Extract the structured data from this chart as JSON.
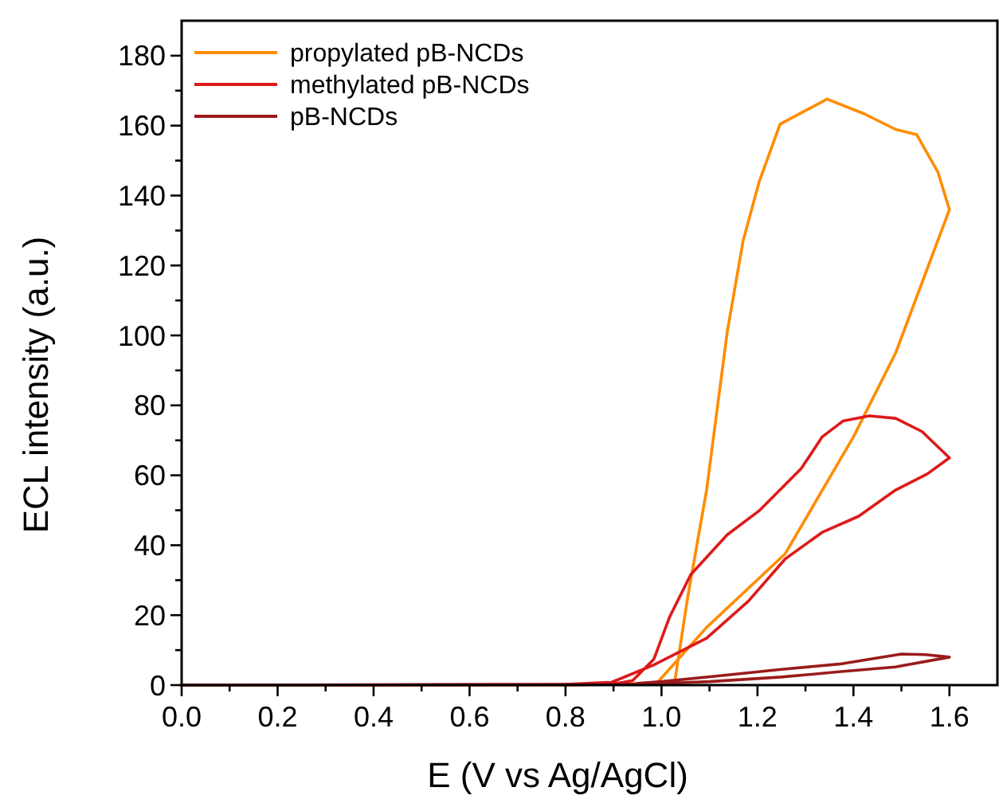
{
  "chart_data": {
    "type": "line",
    "xlabel": "E (V vs Ag/AgCl)",
    "ylabel": "ECL intensity (a.u.)",
    "xlim": [
      0,
      1.7
    ],
    "ylim": [
      0,
      190
    ],
    "xticks": [
      {
        "value": 0,
        "label": "0.0"
      },
      {
        "value": 0.1,
        "label": null
      },
      {
        "value": 0.2,
        "label": "0.2"
      },
      {
        "value": 0.3,
        "label": null
      },
      {
        "value": 0.4,
        "label": "0.4"
      },
      {
        "value": 0.5,
        "label": null
      },
      {
        "value": 0.6,
        "label": "0.6"
      },
      {
        "value": 0.7,
        "label": null
      },
      {
        "value": 0.8,
        "label": "0.8"
      },
      {
        "value": 0.9,
        "label": null
      },
      {
        "value": 1.0,
        "label": "1.0"
      },
      {
        "value": 1.1,
        "label": null
      },
      {
        "value": 1.2,
        "label": "1.2"
      },
      {
        "value": 1.3,
        "label": null
      },
      {
        "value": 1.4,
        "label": "1.4"
      },
      {
        "value": 1.5,
        "label": null
      },
      {
        "value": 1.6,
        "label": "1.6"
      }
    ],
    "yticks": [
      0,
      {
        "value": 10,
        "label": null
      },
      20,
      {
        "value": 30,
        "label": null
      },
      40,
      {
        "value": 50,
        "label": null
      },
      60,
      {
        "value": 70,
        "label": null
      },
      80,
      {
        "value": 90,
        "label": null
      },
      100,
      {
        "value": 110,
        "label": null
      },
      120,
      {
        "value": 130,
        "label": null
      },
      140,
      {
        "value": 150,
        "label": null
      },
      160,
      {
        "value": 170,
        "label": null
      },
      180
    ],
    "legend": "top left",
    "grid": false,
    "marker": "none",
    "line_style": "solid",
    "series": [
      {
        "name": "propylated pB-NCDs",
        "color": "#ff8c00",
        "x": [
          0,
          0.8,
          0.99,
          1.094,
          1.258,
          1.4,
          1.488,
          1.6,
          1.576,
          1.532,
          1.488,
          1.422,
          1.345,
          1.247,
          1.203,
          1.17,
          1.137,
          1.094,
          1.055,
          1.028,
          1.0
        ],
        "values": [
          0,
          0,
          0.5,
          16.5,
          37.6,
          71,
          95,
          136,
          146.7,
          157.4,
          158.9,
          163.4,
          167.6,
          160.4,
          143.7,
          127,
          101,
          55.8,
          25.5,
          1.3,
          0.2
        ]
      },
      {
        "name": "methylated pB-NCDs",
        "color": "#dd1a1a",
        "x": [
          0,
          0.8,
          0.896,
          0.984,
          1.094,
          1.181,
          1.258,
          1.335,
          1.411,
          1.488,
          1.554,
          1.6,
          1.543,
          1.488,
          1.433,
          1.378,
          1.335,
          1.291,
          1.203,
          1.137,
          1.061,
          1.017,
          0.984,
          0.94,
          0.9
        ],
        "values": [
          0,
          0.2,
          0.8,
          5.8,
          13.4,
          24,
          36.1,
          43.7,
          48.3,
          55.8,
          60.4,
          65,
          72.5,
          76.3,
          77,
          75.5,
          71,
          61.9,
          49.8,
          43,
          31.6,
          19.5,
          7.4,
          1.3,
          0.3
        ]
      },
      {
        "name": "pB-NCDs",
        "color": "#9b1b1b",
        "x": [
          0,
          0.9,
          1.01,
          1.1,
          1.249,
          1.37,
          1.487,
          1.6,
          1.55,
          1.5,
          1.37,
          1.25,
          1.13,
          1.0,
          0.95
        ],
        "values": [
          0,
          0.2,
          0.5,
          1,
          2.3,
          3.8,
          5.2,
          8,
          8.7,
          8.9,
          6,
          4.5,
          2.8,
          1,
          0.5
        ]
      }
    ]
  }
}
